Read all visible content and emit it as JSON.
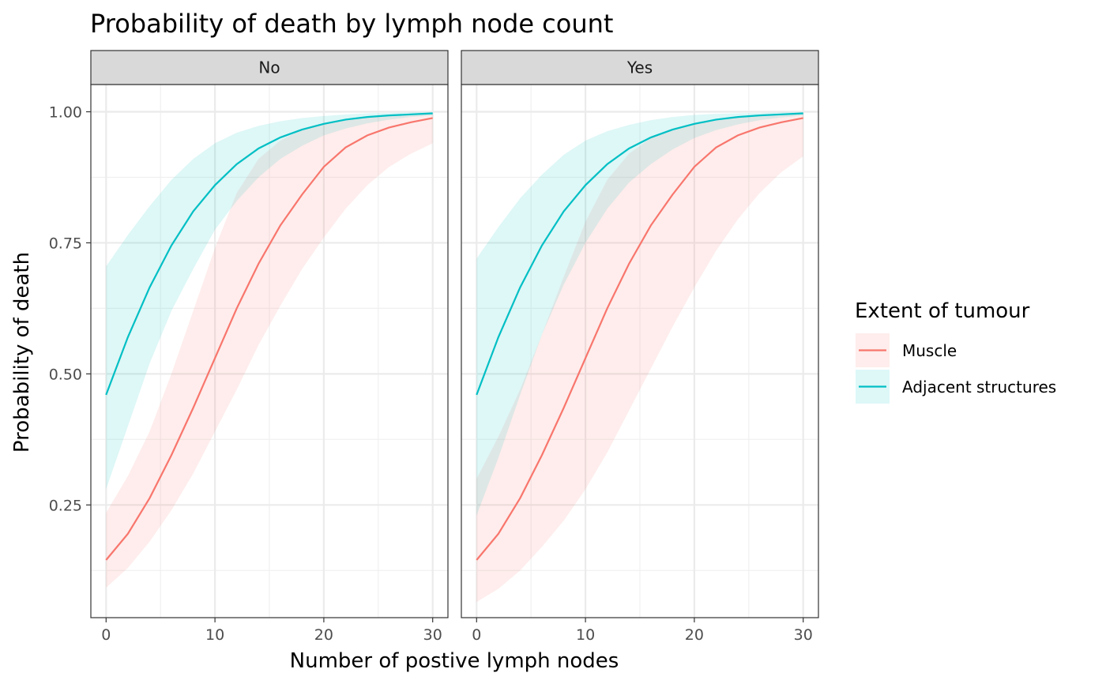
{
  "chart_data": {
    "type": "line",
    "title": "Probability of death by lymph node count",
    "xlabel": "Number of postive lymph nodes",
    "ylabel": "Probability of death",
    "xlim": [
      -1.4,
      31.4
    ],
    "ylim": [
      0.035,
      1.052
    ],
    "x_ticks": [
      0,
      10,
      20,
      30
    ],
    "x_tick_labels": [
      "0",
      "10",
      "20",
      "30"
    ],
    "y_ticks": [
      0.25,
      0.5,
      0.75,
      1.0
    ],
    "y_tick_labels": [
      "0.25",
      "0.50",
      "0.75",
      "1.00"
    ],
    "grid": true,
    "legend": {
      "title": "Extent of tumour",
      "placement": "right",
      "entries": [
        "Muscle",
        "Adjacent structures"
      ]
    },
    "facets": [
      {
        "label": "No",
        "series": [
          {
            "name": "Muscle",
            "color": "#F8766D",
            "x": [
              0,
              2,
              4,
              6,
              8,
              10,
              12,
              14,
              16,
              18,
              20,
              22,
              24,
              26,
              28,
              30
            ],
            "y": [
              0.145,
              0.195,
              0.263,
              0.345,
              0.435,
              0.53,
              0.625,
              0.71,
              0.783,
              0.842,
              0.895,
              0.932,
              0.955,
              0.97,
              0.98,
              0.988
            ],
            "lower": [
              0.092,
              0.13,
              0.18,
              0.24,
              0.31,
              0.39,
              0.47,
              0.555,
              0.63,
              0.7,
              0.76,
              0.815,
              0.86,
              0.895,
              0.92,
              0.94
            ],
            "upper": [
              0.235,
              0.305,
              0.39,
              0.5,
              0.62,
              0.74,
              0.845,
              0.91,
              0.945,
              0.966,
              0.978,
              0.986,
              0.991,
              0.994,
              0.996,
              0.997
            ]
          },
          {
            "name": "Adjacent structures",
            "color": "#00BFC4",
            "x": [
              0,
              2,
              4,
              6,
              8,
              10,
              12,
              14,
              16,
              18,
              20,
              22,
              24,
              26,
              28,
              30
            ],
            "y": [
              0.46,
              0.57,
              0.665,
              0.745,
              0.81,
              0.86,
              0.9,
              0.93,
              0.951,
              0.966,
              0.977,
              0.985,
              0.99,
              0.993,
              0.995,
              0.997
            ],
            "lower": [
              0.28,
              0.4,
              0.52,
              0.62,
              0.7,
              0.775,
              0.83,
              0.875,
              0.91,
              0.935,
              0.955,
              0.968,
              0.978,
              0.985,
              0.99,
              0.993
            ],
            "upper": [
              0.705,
              0.765,
              0.82,
              0.87,
              0.91,
              0.94,
              0.96,
              0.973,
              0.982,
              0.988,
              0.992,
              0.995,
              0.997,
              0.998,
              0.999,
              0.999
            ]
          }
        ]
      },
      {
        "label": "Yes",
        "series": [
          {
            "name": "Muscle",
            "color": "#F8766D",
            "x": [
              0,
              2,
              4,
              6,
              8,
              10,
              12,
              14,
              16,
              18,
              20,
              22,
              24,
              26,
              28,
              30
            ],
            "y": [
              0.145,
              0.195,
              0.263,
              0.345,
              0.435,
              0.53,
              0.625,
              0.71,
              0.783,
              0.842,
              0.895,
              0.932,
              0.955,
              0.97,
              0.98,
              0.988
            ],
            "lower": [
              0.065,
              0.09,
              0.125,
              0.17,
              0.22,
              0.28,
              0.35,
              0.43,
              0.51,
              0.59,
              0.665,
              0.735,
              0.795,
              0.845,
              0.885,
              0.915
            ],
            "upper": [
              0.3,
              0.38,
              0.47,
              0.575,
              0.685,
              0.79,
              0.87,
              0.92,
              0.95,
              0.967,
              0.978,
              0.986,
              0.991,
              0.994,
              0.996,
              0.997
            ]
          },
          {
            "name": "Adjacent structures",
            "color": "#00BFC4",
            "x": [
              0,
              2,
              4,
              6,
              8,
              10,
              12,
              14,
              16,
              18,
              20,
              22,
              24,
              26,
              28,
              30
            ],
            "y": [
              0.46,
              0.57,
              0.665,
              0.745,
              0.81,
              0.86,
              0.9,
              0.93,
              0.951,
              0.966,
              0.977,
              0.985,
              0.99,
              0.993,
              0.995,
              0.997
            ],
            "lower": [
              0.23,
              0.34,
              0.46,
              0.575,
              0.67,
              0.75,
              0.815,
              0.865,
              0.9,
              0.928,
              0.95,
              0.965,
              0.976,
              0.984,
              0.989,
              0.993
            ],
            "upper": [
              0.72,
              0.78,
              0.835,
              0.88,
              0.918,
              0.945,
              0.963,
              0.975,
              0.984,
              0.99,
              0.994,
              0.996,
              0.997,
              0.998,
              0.999,
              0.999
            ]
          }
        ]
      }
    ]
  }
}
